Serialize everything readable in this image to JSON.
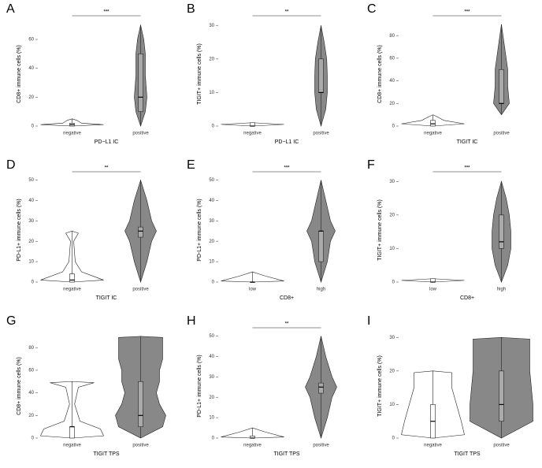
{
  "chart_data": [
    {
      "type": "violin",
      "label": "A",
      "ylabel": "CD8+ immune cells (%)",
      "xlabel": "PD−L1 IC",
      "categories": [
        "negative",
        "positive"
      ],
      "ylim": [
        0,
        72
      ],
      "yticks": [
        0,
        20,
        40,
        60
      ],
      "significance": "***",
      "groups": [
        {
          "fill": "#ffffff",
          "min": 0,
          "q1": 0,
          "median": 1,
          "q3": 2,
          "max": 5,
          "density_y": [
            0,
            1,
            2,
            4,
            5
          ],
          "density": [
            0,
            1,
            0.3,
            0.15,
            0
          ]
        },
        {
          "fill": "#888888",
          "min": 0,
          "q1": 10,
          "median": 20,
          "q3": 50,
          "max": 70,
          "density_y": [
            0,
            10,
            20,
            35,
            50,
            60,
            70
          ],
          "density": [
            0,
            0.15,
            0.2,
            0.15,
            0.15,
            0.1,
            0
          ]
        }
      ]
    },
    {
      "type": "violin",
      "label": "B",
      "ylabel": "TIGIT+ immune cells (%)",
      "xlabel": "PD−L1 IC",
      "categories": [
        "negative",
        "positive"
      ],
      "ylim": [
        0,
        31
      ],
      "yticks": [
        0,
        10,
        20,
        30
      ],
      "significance": "**",
      "groups": [
        {
          "fill": "#ffffff",
          "min": 0,
          "q1": 0,
          "median": 0,
          "q3": 1,
          "max": 1,
          "density_y": [
            0,
            0.5,
            1
          ],
          "density": [
            0,
            1,
            0
          ]
        },
        {
          "fill": "#888888",
          "min": 0,
          "q1": 10,
          "median": 10,
          "q3": 20,
          "max": 30,
          "density_y": [
            0,
            5,
            10,
            15,
            20,
            25,
            30
          ],
          "density": [
            0,
            0.15,
            0.2,
            0.2,
            0.18,
            0.1,
            0
          ]
        }
      ]
    },
    {
      "type": "violin",
      "label": "C",
      "ylabel": "CD8+ immune cells (%)",
      "xlabel": "TIGIT IC",
      "categories": [
        "negative",
        "positive"
      ],
      "ylim": [
        0,
        92
      ],
      "yticks": [
        0,
        20,
        40,
        60,
        80
      ],
      "significance": "***",
      "groups": [
        {
          "fill": "#ffffff",
          "min": 0,
          "q1": 0,
          "median": 2,
          "q3": 5,
          "max": 10,
          "density_y": [
            0,
            2,
            5,
            8,
            10
          ],
          "density": [
            0,
            1,
            0.35,
            0.15,
            0
          ]
        },
        {
          "fill": "#888888",
          "min": 10,
          "q1": 20,
          "median": 20,
          "q3": 50,
          "max": 90,
          "density_y": [
            10,
            20,
            35,
            50,
            70,
            90
          ],
          "density": [
            0,
            0.25,
            0.2,
            0.2,
            0.1,
            0
          ]
        }
      ]
    },
    {
      "type": "violin",
      "label": "D",
      "ylabel": "PD-L1+ immune cells (%)",
      "xlabel": "TIGIT IC",
      "categories": [
        "negative",
        "positive"
      ],
      "ylim": [
        0,
        51
      ],
      "yticks": [
        0,
        10,
        20,
        30,
        40,
        50
      ],
      "significance": "**",
      "groups": [
        {
          "fill": "#ffffff",
          "min": 0,
          "q1": 0,
          "median": 1,
          "q3": 4,
          "max": 25,
          "density_y": [
            0,
            1,
            5,
            10,
            20,
            24,
            25
          ],
          "density": [
            0,
            1,
            0.3,
            0.1,
            0.05,
            0.2,
            0
          ]
        },
        {
          "fill": "#888888",
          "min": 0,
          "q1": 22,
          "median": 25,
          "q3": 27,
          "max": 50,
          "density_y": [
            0,
            10,
            20,
            25,
            30,
            40,
            50
          ],
          "density": [
            0,
            0.2,
            0.35,
            0.5,
            0.35,
            0.2,
            0
          ]
        }
      ]
    },
    {
      "type": "violin",
      "label": "E",
      "ylabel": "PD-L1+ immune cells (%)",
      "xlabel": "CD8+",
      "categories": [
        "low",
        "high"
      ],
      "ylim": [
        0,
        51
      ],
      "yticks": [
        0,
        10,
        20,
        30,
        40,
        50
      ],
      "significance": "***",
      "groups": [
        {
          "fill": "#ffffff",
          "min": 0,
          "q1": 0,
          "median": 0,
          "q3": 0,
          "max": 5,
          "density_y": [
            0,
            0.5,
            3,
            5
          ],
          "density": [
            0,
            1,
            0.4,
            0
          ]
        },
        {
          "fill": "#888888",
          "min": 0,
          "q1": 10,
          "median": 25,
          "q3": 25,
          "max": 50,
          "density_y": [
            0,
            10,
            20,
            25,
            30,
            40,
            50
          ],
          "density": [
            0,
            0.2,
            0.3,
            0.45,
            0.3,
            0.15,
            0
          ]
        }
      ]
    },
    {
      "type": "violin",
      "label": "F",
      "ylabel": "TIGIT+ immune cells (%)",
      "xlabel": "CD8+",
      "categories": [
        "low",
        "high"
      ],
      "ylim": [
        0,
        31
      ],
      "yticks": [
        0,
        10,
        20,
        30
      ],
      "significance": "***",
      "groups": [
        {
          "fill": "#ffffff",
          "min": 0,
          "q1": 0,
          "median": 0,
          "q3": 1,
          "max": 1,
          "density_y": [
            0,
            0.5,
            1
          ],
          "density": [
            0,
            1,
            0
          ]
        },
        {
          "fill": "#888888",
          "min": 0,
          "q1": 10,
          "median": 12,
          "q3": 20,
          "max": 30,
          "density_y": [
            0,
            5,
            10,
            15,
            20,
            25,
            30
          ],
          "density": [
            0,
            0.2,
            0.3,
            0.3,
            0.25,
            0.15,
            0
          ]
        }
      ]
    },
    {
      "type": "violin",
      "label": "G",
      "ylabel": "CD8+ immune cells (%)",
      "xlabel": "TIGIT TPS",
      "categories": [
        "negative",
        "positive"
      ],
      "ylim": [
        0,
        92
      ],
      "yticks": [
        0,
        20,
        40,
        60,
        80
      ],
      "groups": [
        {
          "fill": "#ffffff",
          "min": 0,
          "q1": 0,
          "median": 10,
          "q3": 10,
          "max": 50,
          "density_y": [
            0,
            2,
            8,
            15,
            30,
            45,
            49,
            50
          ],
          "density": [
            0,
            1,
            0.9,
            0.25,
            0.08,
            0.2,
            0.7,
            0
          ]
        },
        {
          "fill": "#888888",
          "min": 0,
          "q1": 10,
          "median": 20,
          "q3": 50,
          "max": 90,
          "density_y": [
            0,
            10,
            20,
            30,
            40,
            50,
            60,
            70,
            80,
            89,
            90
          ],
          "density": [
            0,
            0.7,
            0.8,
            0.6,
            0.5,
            0.6,
            0.6,
            0.7,
            0.7,
            0.7,
            0
          ]
        }
      ]
    },
    {
      "type": "violin",
      "label": "H",
      "ylabel": "PD-L1+ immune cells (%)",
      "xlabel": "TIGIT TPS",
      "categories": [
        "negative",
        "positive"
      ],
      "ylim": [
        0,
        51
      ],
      "yticks": [
        0,
        10,
        20,
        30,
        40,
        50
      ],
      "significance": "**",
      "groups": [
        {
          "fill": "#ffffff",
          "min": 0,
          "q1": 0,
          "median": 0,
          "q3": 1,
          "max": 5,
          "density_y": [
            0,
            0.5,
            3,
            5
          ],
          "density": [
            0,
            1,
            0.4,
            0
          ]
        },
        {
          "fill": "#888888",
          "min": 0,
          "q1": 22,
          "median": 25,
          "q3": 27,
          "max": 50,
          "density_y": [
            0,
            10,
            20,
            25,
            30,
            40,
            50
          ],
          "density": [
            0,
            0.2,
            0.35,
            0.5,
            0.35,
            0.15,
            0
          ]
        }
      ]
    },
    {
      "type": "violin",
      "label": "I",
      "ylabel": "TIGIT+ immune cells (%)",
      "xlabel": "TIGIT TPS",
      "categories": [
        "negative",
        "positive"
      ],
      "ylim": [
        0,
        31
      ],
      "yticks": [
        0,
        10,
        20,
        30
      ],
      "groups": [
        {
          "fill": "#ffffff",
          "min": 0,
          "q1": 0,
          "median": 5,
          "q3": 10,
          "max": 20,
          "density_y": [
            0,
            1,
            5,
            10,
            15,
            19.5,
            20
          ],
          "density": [
            0,
            1,
            0.9,
            0.75,
            0.6,
            0.6,
            0
          ]
        },
        {
          "fill": "#888888",
          "min": 0,
          "q1": 5,
          "median": 10,
          "q3": 20,
          "max": 30,
          "density_y": [
            0,
            5,
            10,
            20,
            29.5,
            30
          ],
          "density": [
            0,
            1,
            1,
            0.9,
            0.9,
            0
          ]
        }
      ]
    }
  ]
}
